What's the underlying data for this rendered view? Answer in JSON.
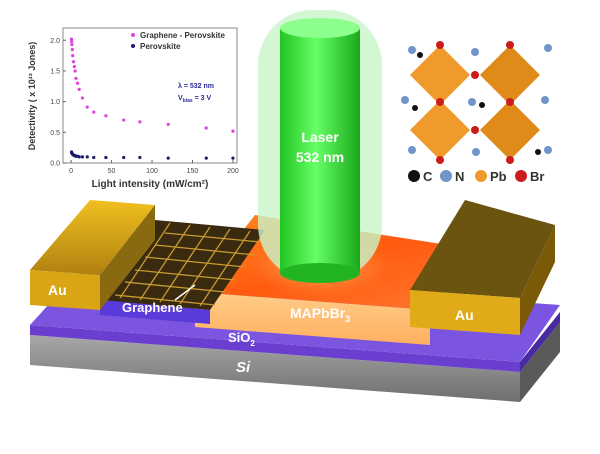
{
  "device": {
    "laser_label_line1": "Laser",
    "laser_label_line2": "532 nm",
    "au_left": "Au",
    "au_right": "Au",
    "graphene": "Graphene",
    "mapbbr3": "MAPbBr",
    "mapbbr3_sub": "3",
    "sio2": "SiO",
    "sio2_sub": "2",
    "si": "Si",
    "colors": {
      "laser": "#33dd33",
      "perovskite": "#ff6a1a",
      "gold": "#d9a514",
      "sio2": "#6a3fd0",
      "si": "#8c8c8c"
    }
  },
  "crystal_legend": [
    {
      "label": "C",
      "color": "#111111"
    },
    {
      "label": "N",
      "color": "#6f95c9"
    },
    {
      "label": "Pb",
      "color": "#ef9a2a"
    },
    {
      "label": "Br",
      "color": "#cc1b1b"
    }
  ],
  "chart_data": {
    "type": "scatter",
    "xlabel": "Light intensity (mW/cm²)",
    "ylabel": "Detectivity ( x 10¹³ Jones)",
    "xlim": [
      -10,
      205
    ],
    "ylim": [
      0,
      2.2
    ],
    "xticks": [
      "0",
      "50",
      "100",
      "150",
      "200"
    ],
    "yticks": [
      "0.0",
      "0.5",
      "1.0",
      "1.5",
      "2.0"
    ],
    "legend_position": "top-right",
    "annotation_line1": "λ = 532 nm",
    "annotation_line2_main": "V",
    "annotation_line2_sub": "bias",
    "annotation_line2_rest": " = 3 V",
    "series": [
      {
        "name": "Graphene - Perovskite",
        "color": "#e040e0",
        "x": [
          0.5,
          0.7,
          1,
          1.5,
          2,
          3,
          4,
          5,
          6,
          8,
          10,
          14,
          20,
          28,
          43,
          65,
          85,
          120,
          167,
          200
        ],
        "y": [
          2.02,
          1.98,
          1.93,
          1.85,
          1.75,
          1.65,
          1.57,
          1.5,
          1.38,
          1.3,
          1.2,
          1.06,
          0.91,
          0.83,
          0.77,
          0.7,
          0.67,
          0.63,
          0.57,
          0.52
        ]
      },
      {
        "name": "Perovskite",
        "color": "#1a1a6e",
        "x": [
          0.5,
          0.7,
          1,
          1.5,
          2,
          3,
          4,
          5,
          6,
          8,
          10,
          14,
          20,
          28,
          43,
          65,
          85,
          120,
          167,
          200
        ],
        "y": [
          0.18,
          0.17,
          0.16,
          0.15,
          0.14,
          0.13,
          0.12,
          0.12,
          0.11,
          0.11,
          0.1,
          0.1,
          0.1,
          0.09,
          0.09,
          0.09,
          0.09,
          0.08,
          0.08,
          0.08
        ]
      }
    ]
  }
}
